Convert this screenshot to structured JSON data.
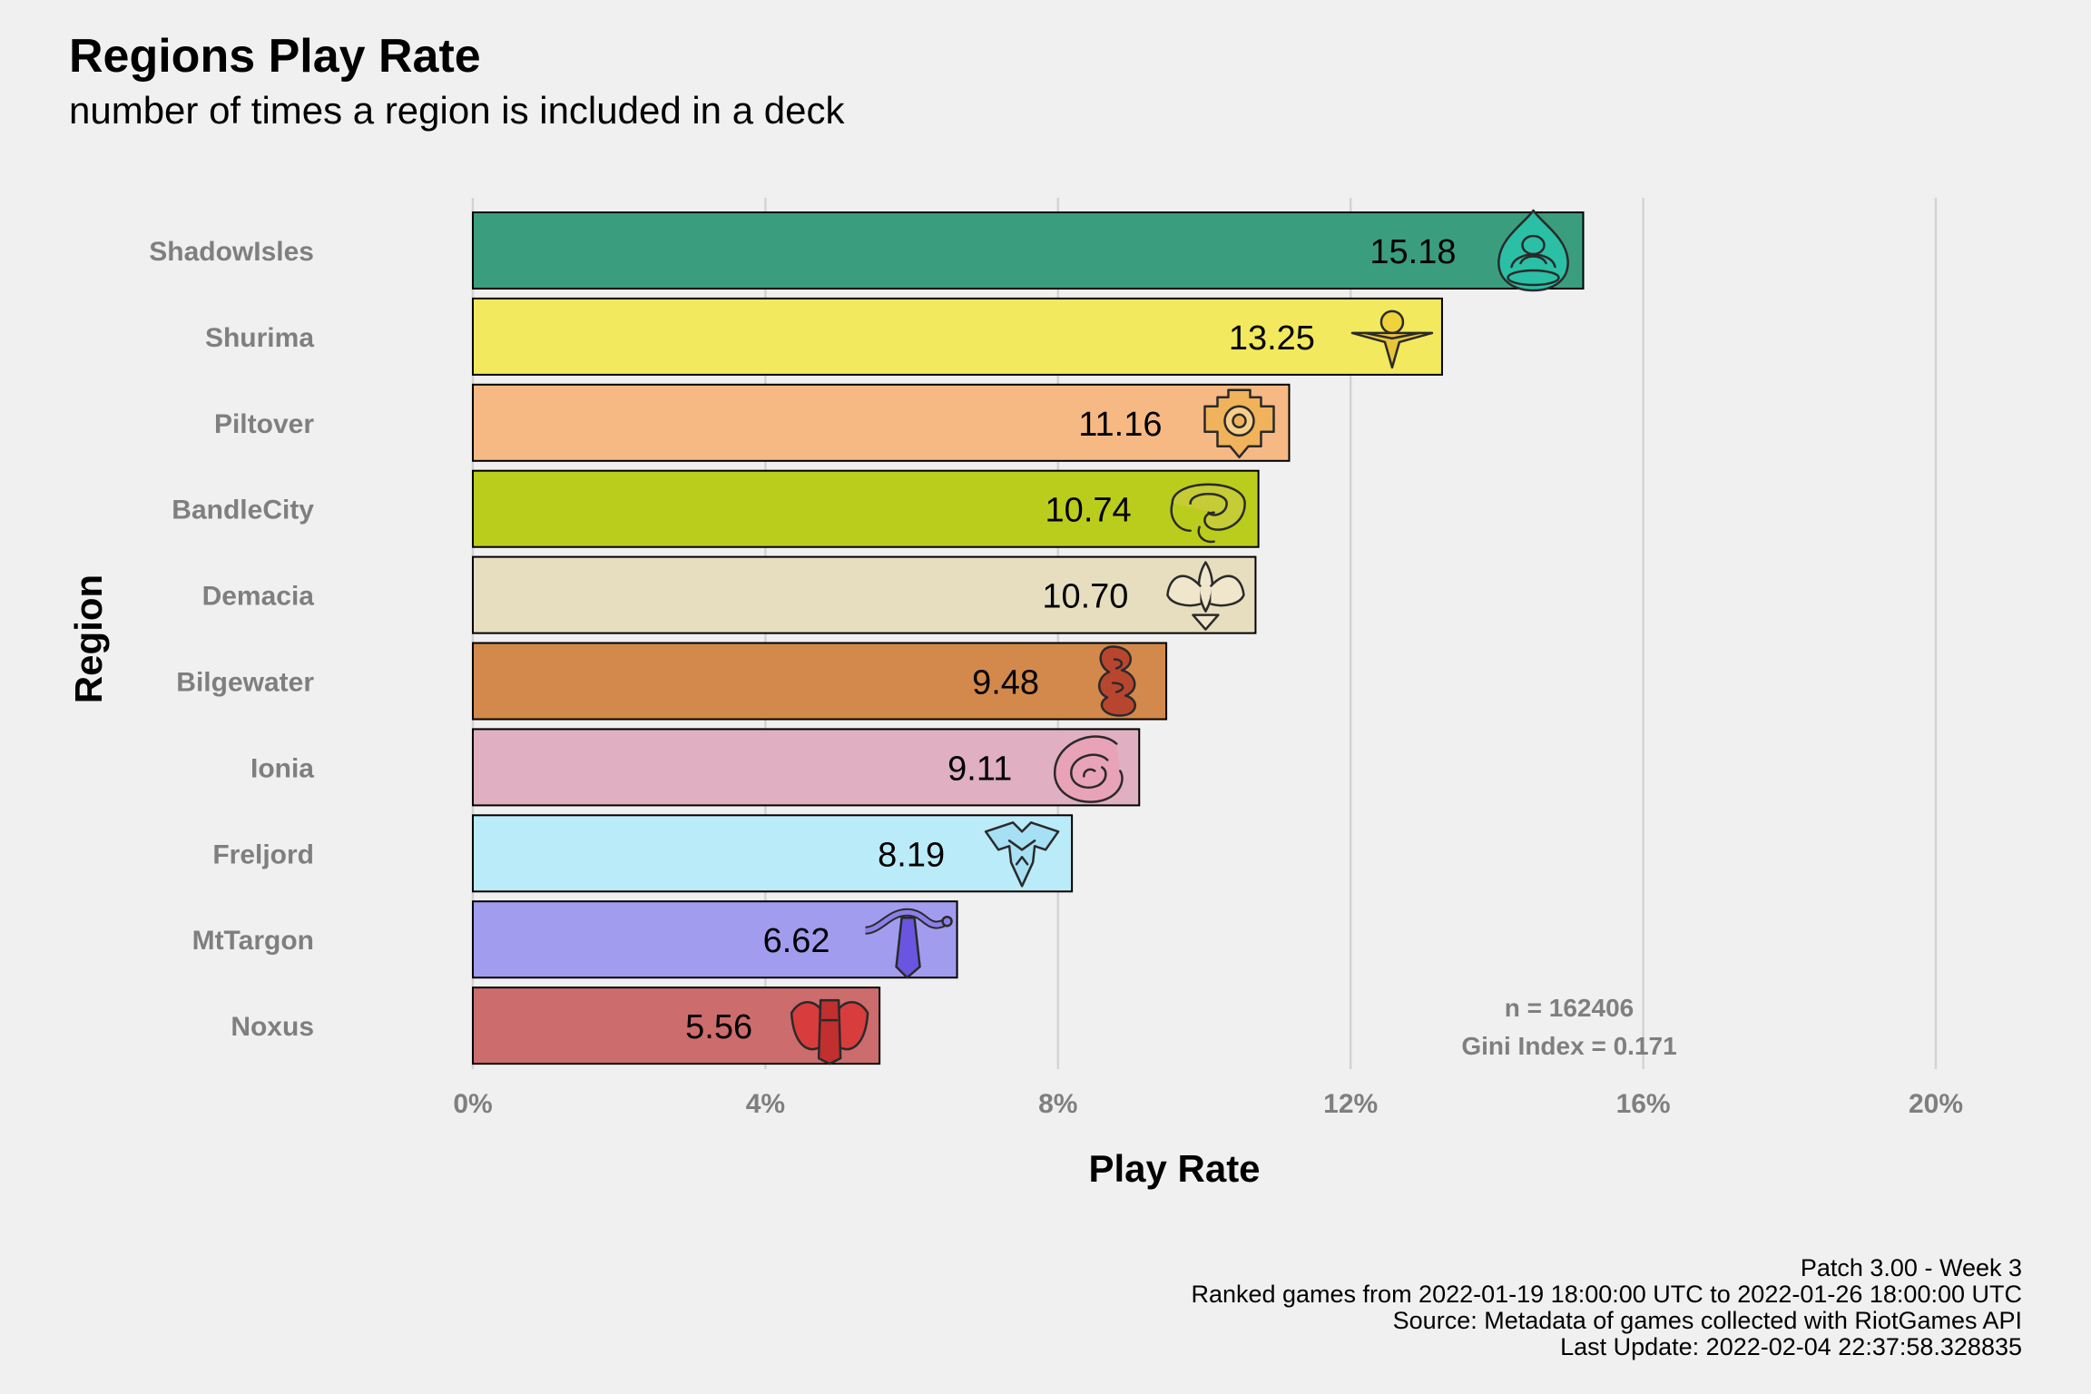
{
  "chart_data": {
    "type": "bar",
    "orientation": "horizontal",
    "title": "Regions Play Rate",
    "subtitle": "number of times a region is included in a deck",
    "xlabel": "Play Rate",
    "ylabel": "Region",
    "xlim": [
      0,
      20
    ],
    "x_ticks": [
      "0%",
      "4%",
      "8%",
      "12%",
      "16%",
      "20%"
    ],
    "x_tick_values": [
      0,
      4,
      8,
      12,
      16,
      20
    ],
    "grid": "vertical major lines",
    "categories": [
      "ShadowIsles",
      "Shurima",
      "Piltover",
      "BandleCity",
      "Demacia",
      "Bilgewater",
      "Ionia",
      "Freljord",
      "MtTargon",
      "Noxus"
    ],
    "values": [
      15.18,
      13.25,
      11.16,
      10.74,
      10.7,
      9.48,
      9.11,
      8.19,
      6.62,
      5.56
    ],
    "value_labels": [
      "15.18",
      "13.25",
      "11.16",
      "10.74",
      "10.70",
      "9.48",
      "9.11",
      "8.19",
      "6.62",
      "5.56"
    ],
    "colors": [
      "#3a9e7e",
      "#f2e95e",
      "#f6b984",
      "#bbcd1c",
      "#e7dec0",
      "#d3894b",
      "#e0afc1",
      "#baebf8",
      "#a29cef",
      "#cd6c6c"
    ],
    "icons": [
      "shadow-isles-icon",
      "shurima-icon",
      "piltover-icon",
      "bandle-city-icon",
      "demacia-icon",
      "bilgewater-icon",
      "ionia-icon",
      "freljord-icon",
      "mt-targon-icon",
      "noxus-icon"
    ],
    "annotations": [
      "n = 162406",
      "Gini Index = 0.171"
    ]
  },
  "caption": [
    "Patch 3.00 - Week 3",
    "Ranked games from 2022-01-19 18:00:00 UTC to 2022-01-26 18:00:00 UTC",
    "Source: Metadata of games collected with RiotGames API",
    "Last Update: 2022-02-04 22:37:58.328835"
  ]
}
